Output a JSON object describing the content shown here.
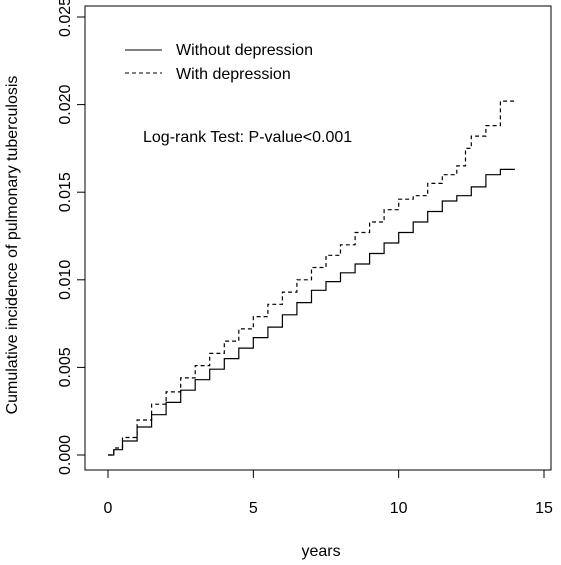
{
  "chart_data": {
    "type": "line",
    "title": "",
    "xlabel": "years",
    "ylabel": "Cumulative incidence of pulmonary tuberculosis",
    "xlim": [
      0,
      15
    ],
    "ylim": [
      0,
      0.025
    ],
    "x_ticks": [
      "0",
      "5",
      "10",
      "15"
    ],
    "y_ticks": [
      "0.000",
      "0.005",
      "0.010",
      "0.015",
      "0.020",
      "0.025"
    ],
    "grid": false,
    "legend_position": "top-left",
    "annotation": "Log-rank Test: P-value<0.001",
    "series": [
      {
        "name": "Without depression",
        "line_style": "solid",
        "color": "#000000",
        "points": [
          [
            0,
            0
          ],
          [
            0.2,
            0.0003
          ],
          [
            0.5,
            0.0008
          ],
          [
            1,
            0.0016
          ],
          [
            1.5,
            0.0023
          ],
          [
            2,
            0.003
          ],
          [
            2.5,
            0.0037
          ],
          [
            3,
            0.0043
          ],
          [
            3.5,
            0.0049
          ],
          [
            4,
            0.0055
          ],
          [
            4.5,
            0.0061
          ],
          [
            5,
            0.0067
          ],
          [
            5.5,
            0.0073
          ],
          [
            6,
            0.008
          ],
          [
            6.5,
            0.0087
          ],
          [
            7,
            0.0094
          ],
          [
            7.5,
            0.0099
          ],
          [
            8,
            0.0104
          ],
          [
            8.5,
            0.0109
          ],
          [
            9,
            0.0115
          ],
          [
            9.5,
            0.0121
          ],
          [
            10,
            0.0127
          ],
          [
            10.5,
            0.0133
          ],
          [
            11,
            0.0139
          ],
          [
            11.5,
            0.0145
          ],
          [
            12,
            0.0148
          ],
          [
            12.5,
            0.0153
          ],
          [
            13,
            0.016
          ],
          [
            13.5,
            0.0163
          ],
          [
            14,
            0.0163
          ]
        ]
      },
      {
        "name": "With depression",
        "line_style": "dashed",
        "color": "#000000",
        "points": [
          [
            0,
            0
          ],
          [
            0.2,
            0.0004
          ],
          [
            0.5,
            0.001
          ],
          [
            1,
            0.002
          ],
          [
            1.5,
            0.0029
          ],
          [
            2,
            0.0036
          ],
          [
            2.5,
            0.0044
          ],
          [
            3,
            0.0051
          ],
          [
            3.5,
            0.0058
          ],
          [
            4,
            0.0065
          ],
          [
            4.5,
            0.0072
          ],
          [
            5,
            0.0079
          ],
          [
            5.5,
            0.0086
          ],
          [
            6,
            0.0093
          ],
          [
            6.5,
            0.01
          ],
          [
            7,
            0.0107
          ],
          [
            7.5,
            0.0114
          ],
          [
            8,
            0.012
          ],
          [
            8.5,
            0.0127
          ],
          [
            9,
            0.0133
          ],
          [
            9.5,
            0.014
          ],
          [
            10,
            0.0146
          ],
          [
            10.5,
            0.0148
          ],
          [
            11,
            0.0155
          ],
          [
            11.5,
            0.016
          ],
          [
            12,
            0.0165
          ],
          [
            12.3,
            0.0175
          ],
          [
            12.5,
            0.0182
          ],
          [
            13,
            0.0188
          ],
          [
            13.4,
            0.0188
          ],
          [
            13.5,
            0.0202
          ],
          [
            14,
            0.0202
          ]
        ]
      }
    ]
  }
}
